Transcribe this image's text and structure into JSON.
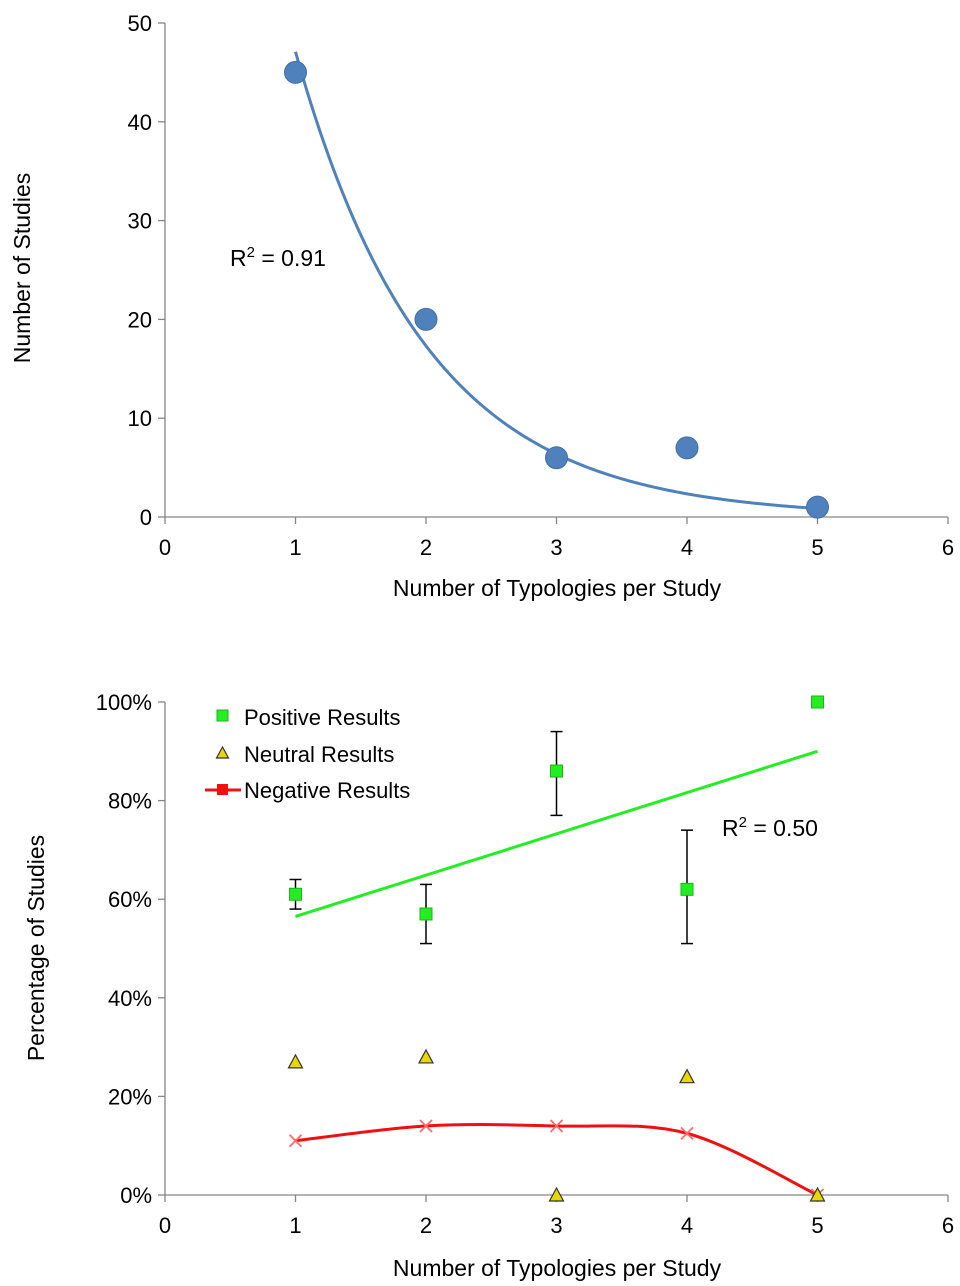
{
  "chart_data": [
    {
      "type": "scatter",
      "xlabel": "Number of Typologies per Study",
      "ylabel": "Number of Studies",
      "xlim": [
        0,
        6
      ],
      "ylim": [
        0,
        50
      ],
      "xticks": [
        0,
        1,
        2,
        3,
        4,
        5,
        6
      ],
      "yticks": [
        0,
        10,
        20,
        30,
        40,
        50
      ],
      "grid": false,
      "series": [
        {
          "x": [
            1,
            2,
            3,
            4,
            5
          ],
          "y": [
            45,
            20,
            6,
            7,
            1
          ],
          "color": "#4f81bd",
          "marker": "circle"
        }
      ],
      "trendline": {
        "kind": "exponential",
        "a": 128,
        "b": -1.0,
        "color": "#4f81bd"
      },
      "annotation": {
        "base": "R",
        "sup": "2",
        "rest": " = 0.91"
      }
    },
    {
      "type": "scatter",
      "xlabel": "Number of Typologies per Study",
      "ylabel": "Percentage of Studies",
      "xlim": [
        0,
        6
      ],
      "ylim": [
        0,
        100
      ],
      "xticks": [
        0,
        1,
        2,
        3,
        4,
        5,
        6
      ],
      "yticks": [
        "0%",
        "20%",
        "40%",
        "60%",
        "80%",
        "100%"
      ],
      "legend_position": "top-left",
      "grid": false,
      "series": [
        {
          "name": "Positive Results",
          "x": [
            1,
            2,
            3,
            4,
            5
          ],
          "y": [
            61,
            57,
            86,
            62,
            100
          ],
          "err_low": [
            58,
            51,
            77,
            51,
            null
          ],
          "err_high": [
            64,
            63,
            94,
            74,
            null
          ],
          "color": "#22ee22",
          "marker": "square",
          "trendline": {
            "kind": "linear",
            "x": [
              1,
              5
            ],
            "y": [
              56.5,
              90
            ]
          }
        },
        {
          "name": "Neutral Results",
          "x": [
            1,
            2,
            3,
            4,
            5
          ],
          "y": [
            27,
            28,
            0,
            24,
            0
          ],
          "color": "#e8d800",
          "marker": "triangle"
        },
        {
          "name": "Negative Results",
          "x": [
            1,
            2,
            3,
            4,
            5
          ],
          "y": [
            11,
            14,
            14,
            12.5,
            0
          ],
          "color": "#ee1111",
          "marker": "x",
          "line": "smooth"
        }
      ],
      "annotation": {
        "base": "R",
        "sup": "2",
        "rest": " = 0.50"
      }
    }
  ]
}
